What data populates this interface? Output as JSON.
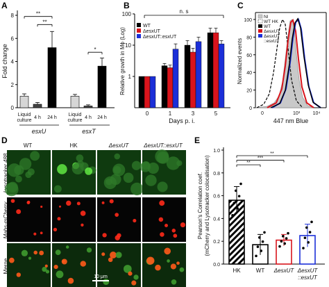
{
  "panels": {
    "A": {
      "letter": "A",
      "ylabel": "Fold change",
      "ylim": [
        0,
        8
      ],
      "yticks": [
        0,
        2,
        4,
        6,
        8
      ],
      "categories": [
        "Liquid culture",
        "4 h",
        "24 h",
        "Liquid culture",
        "4 h",
        "24 h"
      ],
      "groups": [
        "esxU",
        "esxT"
      ],
      "sig": [
        "**",
        "**",
        "*"
      ],
      "colors": [
        "#d6d6d6",
        "#444444",
        "#000000"
      ]
    },
    "B": {
      "letter": "B",
      "ylabel": "Relative growth in Mϕ (Log)",
      "xlabel": "Days p. i.",
      "yticks": [
        "1",
        "10",
        "100"
      ],
      "xticks": [
        "0",
        "1",
        "3",
        "5"
      ],
      "ns": "n. s",
      "legend": [
        "WT",
        "ΔesxUT",
        "ΔesxUT::esxUT"
      ],
      "colors": [
        "#000000",
        "#d9141c",
        "#1b2fd8"
      ]
    },
    "C": {
      "letter": "C",
      "ylabel": "Normalized events",
      "xlabel": "447 nm Blue",
      "yticks": [
        "0",
        "20",
        "40",
        "60",
        "80",
        "100"
      ],
      "xticks": [
        "0",
        "10³",
        "10⁴"
      ],
      "legend": [
        "NI",
        "WT HK",
        "WT",
        "ΔesxUT",
        "ΔesxUT",
        "::esxUT"
      ]
    },
    "D": {
      "letter": "D",
      "columns": [
        "WT",
        "HK",
        "ΔesxUT",
        "ΔesxUT::esxUT"
      ],
      "rows": [
        "Lysotracker 488",
        "Mabs-mCherry",
        "Merge"
      ],
      "scalebar": "10 μm"
    },
    "E": {
      "letter": "E",
      "ylabel1": "Pearson's Correlation coef.",
      "ylabel2": "(mCherry and Lysotracker colocalisation)",
      "yticks": [
        "0.0",
        "0.2",
        "0.4",
        "0.6",
        "0.8",
        "1.0"
      ],
      "xlabels": [
        "HK",
        "WT",
        "ΔesxUT",
        "ΔesxUT",
        "::esxUT"
      ],
      "sig": [
        "**",
        "***",
        "***",
        "**"
      ]
    }
  },
  "chart_data": [
    {
      "type": "bar",
      "panel": "A",
      "ylabel": "Fold change",
      "ylim": [
        0,
        8
      ],
      "categories": [
        "Liquid culture",
        "4 h",
        "24 h",
        "Liquid culture",
        "4 h",
        "24 h"
      ],
      "groups": [
        "esxU",
        "esxU",
        "esxU",
        "esxT",
        "esxT",
        "esxT"
      ],
      "values": [
        1.0,
        0.3,
        5.2,
        1.0,
        0.15,
        3.6
      ],
      "errors": [
        0.2,
        0.15,
        1.4,
        0.15,
        0.1,
        0.7
      ]
    },
    {
      "type": "bar",
      "panel": "B",
      "ylabel": "Relative growth in Mϕ (Log)",
      "xlabel": "Days p. i.",
      "scale": "log",
      "ylim": [
        0.1,
        100
      ],
      "categories": [
        "0",
        "1",
        "3",
        "5"
      ],
      "series": [
        {
          "name": "WT",
          "values": [
            1.0,
            2.2,
            10,
            25
          ],
          "errors": [
            0,
            0.4,
            4,
            10
          ]
        },
        {
          "name": "ΔesxUT",
          "values": [
            1.0,
            1.9,
            6,
            25
          ],
          "errors": [
            0,
            0.4,
            2,
            10
          ]
        },
        {
          "name": "ΔesxUT::esxUT",
          "values": [
            1.0,
            7.5,
            13,
            11
          ],
          "errors": [
            0,
            3.5,
            5,
            3
          ]
        }
      ]
    },
    {
      "type": "line",
      "panel": "C",
      "ylabel": "Normalized events",
      "xlabel": "447 nm Blue",
      "ylim": [
        0,
        100
      ],
      "series": [
        {
          "name": "NI",
          "peak_x": 500,
          "peak_y": 100
        },
        {
          "name": "WT HK",
          "peak_x": 400,
          "peak_y": 100
        },
        {
          "name": "WT",
          "peak_x": 1000,
          "peak_y": 100
        },
        {
          "name": "ΔesxUT",
          "peak_x": 700,
          "peak_y": 100
        },
        {
          "name": "ΔesxUT::esxUT",
          "peak_x": 1000,
          "peak_y": 100
        }
      ]
    },
    {
      "type": "bar",
      "panel": "E",
      "ylabel": "Pearson's Correlation coef. (mCherry and Lysotracker colocalisation)",
      "ylim": [
        0,
        1.0
      ],
      "categories": [
        "HK",
        "WT",
        "ΔesxUT",
        "ΔesxUT::esxUT"
      ],
      "values": [
        0.56,
        0.17,
        0.21,
        0.25
      ],
      "errors": [
        0.12,
        0.09,
        0.05,
        0.1
      ],
      "colors": [
        "#000000",
        "#000000",
        "#d9141c",
        "#1b2fd8"
      ]
    }
  ]
}
